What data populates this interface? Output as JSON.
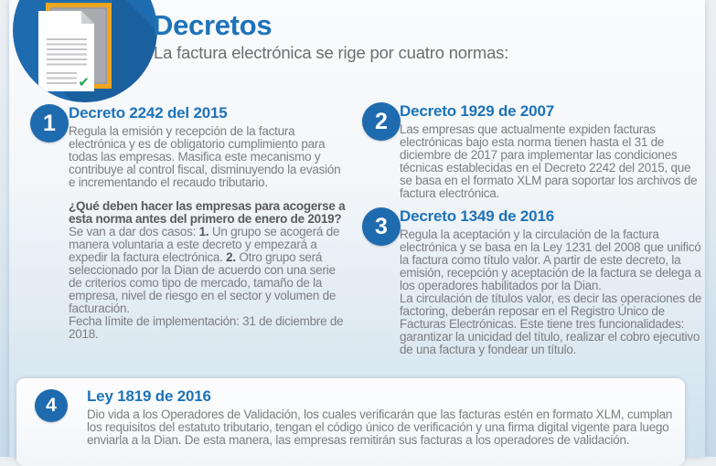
{
  "header": {
    "title": "Decretos",
    "subtitle": "La factura electrónica se rige por cuatro normas:",
    "icon": "document-check-icon",
    "check_glyph": "✔"
  },
  "colors": {
    "accent_blue": "#1d73b8",
    "badge_blue": "#1f6bb0",
    "gray_body": "#7c7e82",
    "gray_bold": "#595a5c",
    "gray_subtitle": "#6d6e71",
    "orange": "#f0a51e",
    "check_green": "#28a351"
  },
  "items": [
    {
      "number": "1",
      "title": "Decreto 2242 del 2015",
      "blocks": [
        [
          [
            {
              "text": "Regula la emisión y recepción de la factura electrónica y es de obligatorio cumplimiento para todas las empresas. Masifica este mecanismo y contribuye al control fiscal, disminuyendo la evasión e incrementando el recaudo tributario.",
              "bold": false
            }
          ]
        ],
        [
          [
            {
              "text": "¿Qué deben hacer las empresas para acogerse a esta norma antes del primero de enero de 2019?",
              "bold": true
            },
            {
              "text": " Se van a dar dos casos: ",
              "bold": false
            },
            {
              "text": "1.",
              "bold": true
            },
            {
              "text": " Un grupo se acogerá de manera voluntaria a este decreto y empezará a expedir la factura electrónica. ",
              "bold": false
            },
            {
              "text": "2.",
              "bold": true
            },
            {
              "text": " Otro grupo será seleccionado por la Dian de acuerdo con una serie de criterios como tipo de mercado, tamaño de la empresa, nivel de riesgo en el sector y volumen de facturación.",
              "bold": false
            }
          ],
          [
            {
              "text": "Fecha límite de implementación: 31 de diciembre de 2018.",
              "bold": false
            }
          ]
        ]
      ]
    },
    {
      "number": "2",
      "title": "Decreto 1929 de 2007",
      "blocks": [
        [
          [
            {
              "text": "Las empresas que actualmente expiden facturas electrónicas bajo esta norma tienen hasta el 31 de diciembre de 2017 para implementar las condiciones técnicas establecidas en el Decreto 2242 del 2015, que se basa en el formato XLM para soportar los archivos de factura electrónica.",
              "bold": false
            }
          ]
        ]
      ]
    },
    {
      "number": "3",
      "title": "Decreto 1349 de 2016",
      "blocks": [
        [
          [
            {
              "text": "Regula la aceptación y la circulación de la factura electrónica y se basa en la Ley 1231 del 2008 que unificó la factura como título valor. A partir de este decreto, la emisión, recepción y aceptación de la factura se delega a los operadores habilitados por la Dian.",
              "bold": false
            }
          ],
          [
            {
              "text": "La circulación de títulos valor, es decir las operaciones de factoring, deberán reposar en el Registro Único de Facturas Electrónicas. Este tiene tres funcionalidades: garantizar la unicidad del título, realizar el cobro ejecutivo de una factura y fondear un título.",
              "bold": false
            }
          ]
        ]
      ]
    },
    {
      "number": "4",
      "title": "Ley 1819 de 2016",
      "blocks": [
        [
          [
            {
              "text": "Dio vida a los Operadores de Validación, los cuales verificarán que las facturas estén en formato XLM, cumplan los requisitos del estatuto tributario, tengan el código único de verificación y una firma digital vigente para luego enviarla a la Dian. De esta manera, las empresas remitirán sus facturas a los operadores de validación.",
              "bold": false
            }
          ]
        ]
      ]
    }
  ]
}
